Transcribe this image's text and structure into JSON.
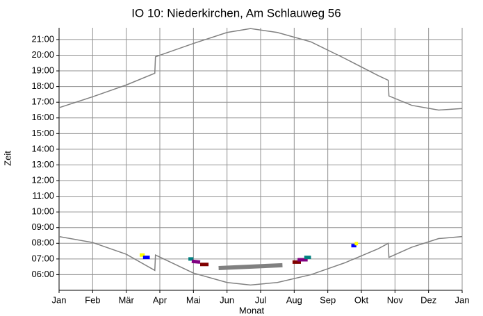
{
  "chart_data": {
    "type": "line",
    "title": "IO 10: Niederkirchen, Am Schlauweg 56",
    "x_label": "Monat",
    "y_label": "Zeit",
    "xlim": [
      0,
      12
    ],
    "xticks": [
      {
        "value": 0,
        "label": "Jan"
      },
      {
        "value": 1,
        "label": "Feb"
      },
      {
        "value": 2,
        "label": "Mär"
      },
      {
        "value": 3,
        "label": "Apr"
      },
      {
        "value": 4,
        "label": "Mai"
      },
      {
        "value": 5,
        "label": "Jun"
      },
      {
        "value": 6,
        "label": "Jul"
      },
      {
        "value": 7,
        "label": "Aug"
      },
      {
        "value": 8,
        "label": "Sep"
      },
      {
        "value": 9,
        "label": "Okt"
      },
      {
        "value": 10,
        "label": "Nov"
      },
      {
        "value": 11,
        "label": "Dez"
      },
      {
        "value": 12,
        "label": "Jan"
      }
    ],
    "ylim": [
      5,
      21.75
    ],
    "yticks": [
      {
        "value": 6,
        "label": "06:00"
      },
      {
        "value": 7,
        "label": "07:00"
      },
      {
        "value": 8,
        "label": "08:00"
      },
      {
        "value": 9,
        "label": "09:00"
      },
      {
        "value": 10,
        "label": "10:00"
      },
      {
        "value": 11,
        "label": "11:00"
      },
      {
        "value": 12,
        "label": "12:00"
      },
      {
        "value": 13,
        "label": "13:00"
      },
      {
        "value": 14,
        "label": "14:00"
      },
      {
        "value": 15,
        "label": "15:00"
      },
      {
        "value": 16,
        "label": "16:00"
      },
      {
        "value": 17,
        "label": "17:00"
      },
      {
        "value": 18,
        "label": "18:00"
      },
      {
        "value": 19,
        "label": "19:00"
      },
      {
        "value": 20,
        "label": "20:00"
      },
      {
        "value": 21,
        "label": "21:00"
      }
    ],
    "grid": true,
    "series": [
      {
        "color": "#808080",
        "width": 1.5,
        "x": [
          0,
          1,
          2,
          2.85,
          2.87,
          4,
          5,
          5.7,
          6.5,
          7.5,
          8.5,
          9.5,
          9.8,
          9.82,
          10.5,
          11.3,
          12
        ],
        "values": [
          16.65,
          17.35,
          18.1,
          18.85,
          19.9,
          20.75,
          21.45,
          21.7,
          21.45,
          20.85,
          19.8,
          18.7,
          18.4,
          17.4,
          16.8,
          16.5,
          16.6
        ]
      },
      {
        "color": "#808080",
        "width": 1.5,
        "x": [
          0,
          1,
          2,
          2.85,
          2.87,
          4,
          5,
          5.7,
          6.5,
          7.5,
          8.5,
          9.5,
          9.8,
          9.82,
          10.5,
          11.3,
          12
        ],
        "values": [
          8.43,
          8.05,
          7.3,
          6.27,
          7.25,
          6.1,
          5.5,
          5.34,
          5.5,
          6.0,
          6.75,
          7.65,
          8.0,
          7.1,
          7.75,
          8.3,
          8.43
        ]
      },
      {
        "color": "#ffff00",
        "width": 5,
        "x": [
          2.4,
          2.55
        ],
        "values": [
          7.25,
          7.25
        ]
      },
      {
        "color": "#0000ff",
        "width": 5,
        "x": [
          2.5,
          2.7
        ],
        "values": [
          7.1,
          7.1
        ]
      },
      {
        "color": "#008080",
        "width": 5,
        "x": [
          3.85,
          4.0
        ],
        "values": [
          7.0,
          7.0
        ]
      },
      {
        "color": "#800080",
        "width": 5,
        "x": [
          3.95,
          4.2
        ],
        "values": [
          6.85,
          6.8
        ]
      },
      {
        "color": "#800000",
        "width": 5,
        "x": [
          4.2,
          4.45
        ],
        "values": [
          6.65,
          6.65
        ]
      },
      {
        "color": "#808080",
        "width": 6,
        "x": [
          4.75,
          6.65
        ],
        "values": [
          6.42,
          6.6
        ]
      },
      {
        "color": "#800000",
        "width": 5,
        "x": [
          6.95,
          7.2
        ],
        "values": [
          6.8,
          6.8
        ]
      },
      {
        "color": "#800080",
        "width": 5,
        "x": [
          7.1,
          7.4
        ],
        "values": [
          6.95,
          6.95
        ]
      },
      {
        "color": "#008080",
        "width": 5,
        "x": [
          7.3,
          7.5
        ],
        "values": [
          7.1,
          7.1
        ]
      },
      {
        "color": "#0000ff",
        "width": 5,
        "x": [
          8.7,
          8.85
        ],
        "values": [
          7.85,
          7.85
        ]
      },
      {
        "color": "#ffff00",
        "width": 5,
        "x": [
          8.8,
          8.9
        ],
        "values": [
          7.98,
          7.98
        ]
      }
    ]
  }
}
